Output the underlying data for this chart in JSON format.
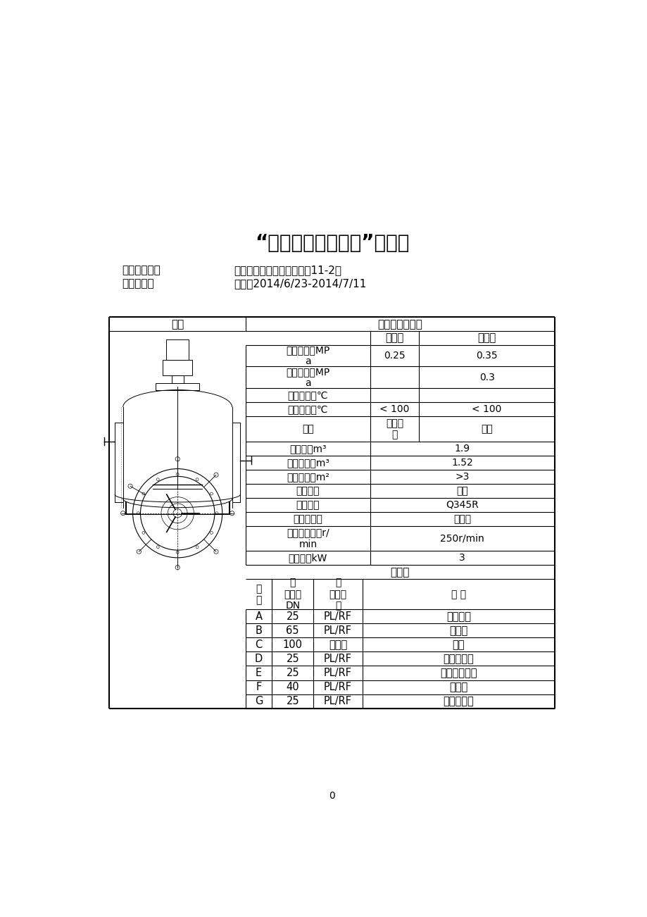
{
  "title": "“过程装备课程设计”任务书",
  "info_line1_label": "设计者姓名：",
  "info_line1_right": "班级：过程装备与控制工程11-2班",
  "info_line2_label": "指导老师：",
  "info_line2_right": "日期：2014/6/23-2014/7/11",
  "page_num": "0",
  "table_header_col1": "简图",
  "table_header_col2": "设计參数及要求",
  "container_inner": "容器内",
  "jacket_inner": "夹套内",
  "param_rows": [
    [
      "工作压力，MP\na",
      "0.25",
      "0.35",
      false
    ],
    [
      "设计压力，MP\na",
      "",
      "0.3",
      false
    ],
    [
      "工作温度，℃",
      "",
      "",
      false
    ],
    [
      "设计温度，℃",
      "< 100",
      "< 100",
      false
    ],
    [
      "介质",
      "有机溶\n剂",
      "蔓汽",
      false
    ],
    [
      "全容积，m³",
      "1.9",
      "",
      true
    ],
    [
      "操作容积，m³",
      "1.52",
      "",
      true
    ],
    [
      "传热面积，m²",
      ">3",
      "",
      true
    ],
    [
      "腔蚀情况",
      "微弱",
      "",
      true
    ],
    [
      "推荐材料",
      "Q345R",
      "",
      true
    ],
    [
      "搅拌器型式",
      "推进式",
      "",
      true
    ],
    [
      "搅拌轴转速，r/\nmin",
      "250r/min",
      "",
      true
    ],
    [
      "轴功率，kW",
      "3",
      "",
      true
    ]
  ],
  "pipe_header": "接管表",
  "pipe_col_headers": [
    "符\n号",
    "公\n称尺寸\nDN",
    "连\n接面形\n式",
    "用 途"
  ],
  "pipe_rows": [
    [
      "A",
      "25",
      "PL/RF",
      "蔓汽入口"
    ],
    [
      "B",
      "65",
      "PL/RF",
      "加料口"
    ],
    [
      "C",
      "100",
      "凸凹面",
      "视镜"
    ],
    [
      "D",
      "25",
      "PL/RF",
      "温度计管口"
    ],
    [
      "E",
      "25",
      "PL/RF",
      "压缩空气入口"
    ],
    [
      "F",
      "40",
      "PL/RF",
      "放料口"
    ],
    [
      "G",
      "25",
      "PL/RF",
      "冷凝水出口"
    ]
  ],
  "bg_color": "#ffffff",
  "text_color": "#000000",
  "line_color": "#000000"
}
